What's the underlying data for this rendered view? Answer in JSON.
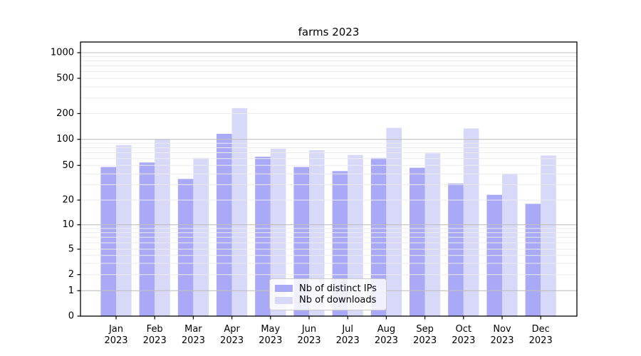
{
  "chart_data": {
    "type": "bar",
    "title": "farms 2023",
    "yscale": "symlog",
    "grid": true,
    "legend_position": "lower center",
    "yticks": [
      0,
      1,
      2,
      5,
      10,
      20,
      50,
      100,
      200,
      500,
      1000
    ],
    "ylim": [
      0,
      1300
    ],
    "categories": [
      {
        "month": "Jan",
        "year": "2023"
      },
      {
        "month": "Feb",
        "year": "2023"
      },
      {
        "month": "Mar",
        "year": "2023"
      },
      {
        "month": "Apr",
        "year": "2023"
      },
      {
        "month": "May",
        "year": "2023"
      },
      {
        "month": "Jun",
        "year": "2023"
      },
      {
        "month": "Jul",
        "year": "2023"
      },
      {
        "month": "Aug",
        "year": "2023"
      },
      {
        "month": "Sep",
        "year": "2023"
      },
      {
        "month": "Oct",
        "year": "2023"
      },
      {
        "month": "Nov",
        "year": "2023"
      },
      {
        "month": "Dec",
        "year": "2023"
      }
    ],
    "series": [
      {
        "key": "distinct-ips",
        "name": "Nb of distinct IPs",
        "color": "#a9a9f7",
        "values": [
          48,
          54,
          35,
          116,
          63,
          48,
          43,
          61,
          47,
          31,
          23,
          18
        ]
      },
      {
        "key": "downloads",
        "name": "Nb of downloads",
        "color": "#d8d8f8",
        "values": [
          86,
          100,
          61,
          230,
          78,
          75,
          66,
          136,
          69,
          134,
          40,
          65
        ]
      }
    ]
  }
}
